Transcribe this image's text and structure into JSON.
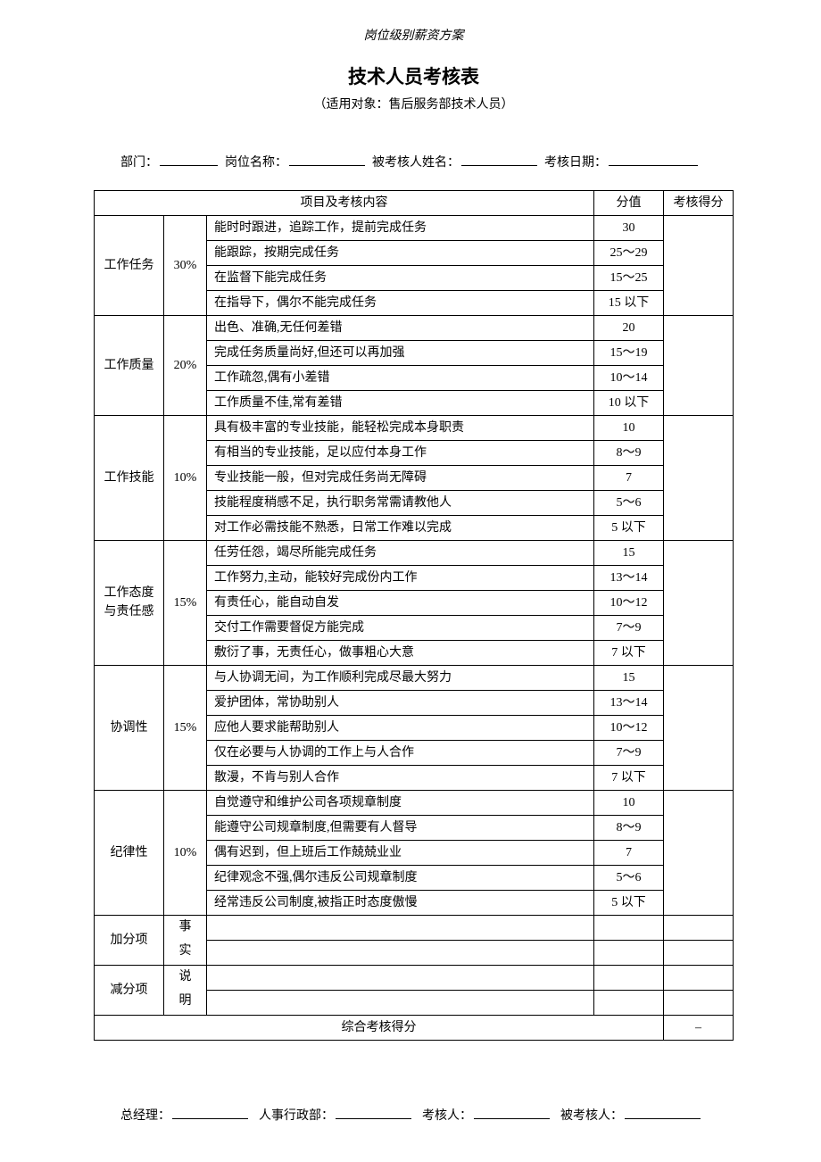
{
  "doc_header": "岗位级别薪资方案",
  "title": "技术人员考核表",
  "subtitle": "（适用对象：售后服务部技术人员）",
  "info": {
    "dept_label": "部门：",
    "position_label": "岗位名称：",
    "name_label": "被考核人姓名：",
    "date_label": "考核日期："
  },
  "table": {
    "header_content": "项目及考核内容",
    "header_score": "分值",
    "header_result": "考核得分",
    "sections": [
      {
        "name": "工作任务",
        "weight": "30%",
        "rows": [
          {
            "desc": "能时时跟进，追踪工作，提前完成任务",
            "score": "30"
          },
          {
            "desc": "能跟踪，按期完成任务",
            "score": "25～29"
          },
          {
            "desc": "在监督下能完成任务",
            "score": "15～25"
          },
          {
            "desc": "在指导下，偶尔不能完成任务",
            "score": "15 以下"
          }
        ]
      },
      {
        "name": "工作质量",
        "weight": "20%",
        "rows": [
          {
            "desc": "出色、准确,无任何差错",
            "score": "20"
          },
          {
            "desc": "完成任务质量尚好,但还可以再加强",
            "score": "15～19"
          },
          {
            "desc": "工作疏忽,偶有小差错",
            "score": "10～14"
          },
          {
            "desc": "工作质量不佳,常有差错",
            "score": "10 以下"
          }
        ]
      },
      {
        "name": "工作技能",
        "weight": "10%",
        "rows": [
          {
            "desc": "具有极丰富的专业技能，能轻松完成本身职责",
            "score": "10"
          },
          {
            "desc": "有相当的专业技能，足以应付本身工作",
            "score": "8～9"
          },
          {
            "desc": "专业技能一般，但对完成任务尚无障碍",
            "score": "7"
          },
          {
            "desc": "技能程度稍感不足，执行职务常需请教他人",
            "score": "5～6"
          },
          {
            "desc": "对工作必需技能不熟悉，日常工作难以完成",
            "score": "5 以下"
          }
        ]
      },
      {
        "name": "工作态度与责任感",
        "weight": "15%",
        "rows": [
          {
            "desc": "任劳任怨，竭尽所能完成任务",
            "score": "15"
          },
          {
            "desc": "工作努力,主动，能较好完成份内工作",
            "score": "13～14"
          },
          {
            "desc": "有责任心，能自动自发",
            "score": "10～12"
          },
          {
            "desc": "交付工作需要督促方能完成",
            "score": "7～9"
          },
          {
            "desc": "敷衍了事，无责任心，做事粗心大意",
            "score": "7 以下"
          }
        ]
      },
      {
        "name": "协调性",
        "weight": "15%",
        "rows": [
          {
            "desc": "与人协调无间，为工作顺利完成尽最大努力",
            "score": "15"
          },
          {
            "desc": "爱护团体，常协助别人",
            "score": "13～14"
          },
          {
            "desc": "应他人要求能帮助别人",
            "score": "10～12"
          },
          {
            "desc": "仅在必要与人协调的工作上与人合作",
            "score": "7～9"
          },
          {
            "desc": "散漫，不肯与别人合作",
            "score": "7 以下"
          }
        ]
      },
      {
        "name": "纪律性",
        "weight": "10%",
        "rows": [
          {
            "desc": "自觉遵守和维护公司各项规章制度",
            "score": "10"
          },
          {
            "desc": "能遵守公司规章制度,但需要有人督导",
            "score": "8～9"
          },
          {
            "desc": "偶有迟到，但上班后工作兢兢业业",
            "score": "7"
          },
          {
            "desc": "纪律观念不强,偶尔违反公司规章制度",
            "score": "5～6"
          },
          {
            "desc": "经常违反公司制度,被指正时态度傲慢",
            "score": "5 以下"
          }
        ]
      }
    ],
    "bonus_label": "加分项",
    "penalty_label": "减分项",
    "fact_label": "事实说明",
    "total_label": "综合考核得分",
    "total_value": "–"
  },
  "sign": {
    "gm": "总经理：",
    "hr": "人事行政部：",
    "assessor": "考核人：",
    "assessee": "被考核人："
  }
}
